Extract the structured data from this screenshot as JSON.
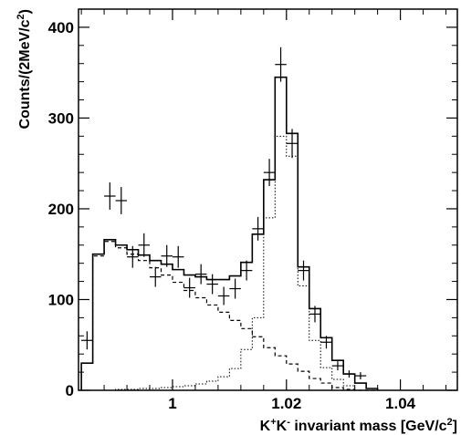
{
  "chart_data": {
    "type": "line",
    "xlabel": "K⁺K⁻ invariant mass [GeV/c²]",
    "ylabel": "Counts/(2MeV/c²)",
    "xlim": [
      0.9835,
      1.05
    ],
    "ylim": [
      0,
      420
    ],
    "x_ticks": [
      1,
      1.02,
      1.04
    ],
    "x_tick_labels": [
      "1",
      "1.02",
      "1.04"
    ],
    "y_ticks": [
      0,
      100,
      200,
      300,
      400
    ],
    "y_tick_labels": [
      "0",
      "100",
      "200",
      "300",
      "400"
    ],
    "grid": false,
    "legend": "none",
    "bin_width": 0.002,
    "series": [
      {
        "kind": "histogram-solid",
        "color": "#000000",
        "bin_edges": [
          0.984,
          0.986,
          0.988,
          0.99,
          0.992,
          0.994,
          0.996,
          0.998,
          1.0,
          1.002,
          1.004,
          1.006,
          1.008,
          1.01,
          1.012,
          1.014,
          1.016,
          1.018,
          1.02,
          1.022,
          1.024,
          1.026,
          1.028,
          1.03,
          1.032,
          1.034,
          1.036
        ],
        "values": [
          30,
          150,
          166,
          160,
          155,
          149,
          143,
          139,
          133,
          127,
          125,
          122,
          122,
          126,
          141,
          172,
          232,
          345,
          283,
          136,
          90,
          58,
          33,
          18,
          8,
          2
        ]
      },
      {
        "kind": "histogram-dashed",
        "color": "#000000",
        "bin_edges": [
          0.984,
          0.986,
          0.988,
          0.99,
          0.992,
          0.994,
          0.996,
          0.998,
          1.0,
          1.002,
          1.004,
          1.006,
          1.008,
          1.01,
          1.012,
          1.014,
          1.016,
          1.018,
          1.02,
          1.022,
          1.024,
          1.026,
          1.028,
          1.03,
          1.032,
          1.034,
          1.036
        ],
        "values": [
          30,
          148,
          164,
          157,
          150,
          143,
          135,
          127,
          119,
          110,
          102,
          94,
          86,
          77,
          68,
          59,
          47,
          38,
          29,
          21,
          13,
          8,
          3,
          1,
          0,
          0
        ]
      },
      {
        "kind": "histogram-dotted",
        "color": "#000000",
        "bin_edges": [
          0.99,
          0.992,
          0.994,
          0.996,
          0.998,
          1.0,
          1.002,
          1.004,
          1.006,
          1.008,
          1.01,
          1.012,
          1.014,
          1.016,
          1.018,
          1.02,
          1.022,
          1.024,
          1.026,
          1.028,
          1.03,
          1.032
        ],
        "values": [
          1,
          1,
          2,
          2,
          3,
          4,
          5,
          7,
          10,
          15,
          24,
          45,
          80,
          190,
          280,
          258,
          115,
          55,
          25,
          12,
          5,
          2
        ]
      },
      {
        "kind": "data-points",
        "color": "#000000",
        "points": [
          {
            "x": 0.985,
            "y": 55,
            "ey": 10
          },
          {
            "x": 0.989,
            "y": 214,
            "ey": 15
          },
          {
            "x": 0.991,
            "y": 209,
            "ey": 15
          },
          {
            "x": 0.993,
            "y": 147,
            "ey": 12
          },
          {
            "x": 0.995,
            "y": 160,
            "ey": 13
          },
          {
            "x": 0.997,
            "y": 125,
            "ey": 11
          },
          {
            "x": 0.999,
            "y": 148,
            "ey": 12
          },
          {
            "x": 1.001,
            "y": 147,
            "ey": 12
          },
          {
            "x": 1.003,
            "y": 113,
            "ey": 11
          },
          {
            "x": 1.005,
            "y": 128,
            "ey": 11
          },
          {
            "x": 1.007,
            "y": 117,
            "ey": 11
          },
          {
            "x": 1.009,
            "y": 104,
            "ey": 10
          },
          {
            "x": 1.011,
            "y": 112,
            "ey": 11
          },
          {
            "x": 1.013,
            "y": 132,
            "ey": 11
          },
          {
            "x": 1.015,
            "y": 178,
            "ey": 13
          },
          {
            "x": 1.017,
            "y": 240,
            "ey": 15
          },
          {
            "x": 1.019,
            "y": 359,
            "ey": 19
          },
          {
            "x": 1.021,
            "y": 272,
            "ey": 16
          },
          {
            "x": 1.023,
            "y": 132,
            "ey": 11
          },
          {
            "x": 1.025,
            "y": 84,
            "ey": 9
          },
          {
            "x": 1.027,
            "y": 53,
            "ey": 7
          },
          {
            "x": 1.029,
            "y": 27,
            "ey": 5
          },
          {
            "x": 1.031,
            "y": 18,
            "ey": 4
          },
          {
            "x": 1.033,
            "y": 16,
            "ey": 4
          }
        ]
      }
    ]
  }
}
